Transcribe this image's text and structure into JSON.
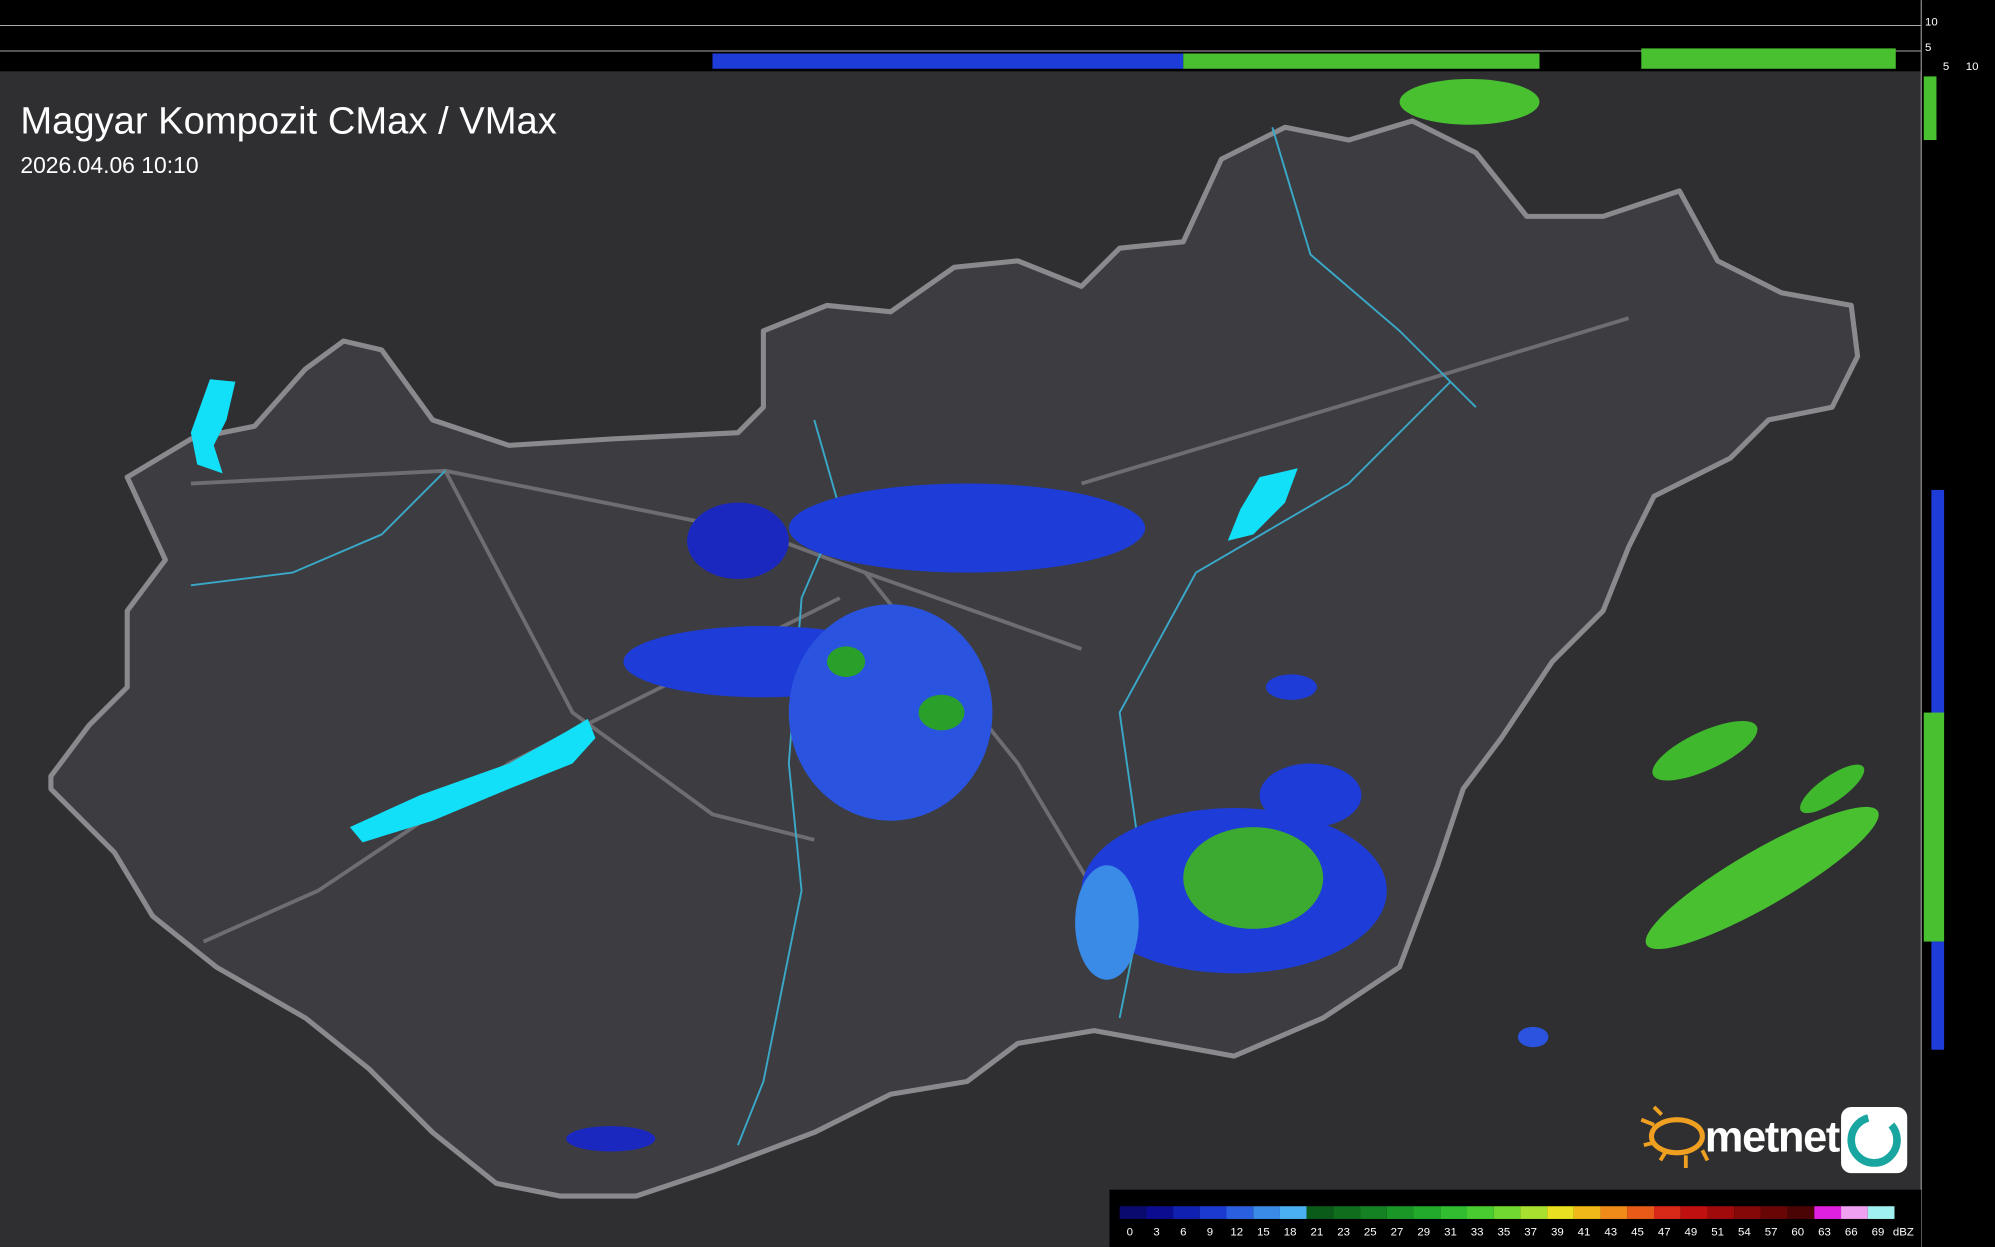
{
  "header": {
    "title": "Magyar Kompozit CMax / VMax",
    "timestamp": "2026.04.06 10:10"
  },
  "side_scale": {
    "top_labels": [
      "10",
      "5"
    ],
    "bottom_labels": [
      "5",
      "10"
    ]
  },
  "logo": {
    "text": "metnet"
  },
  "legend": {
    "unit": "dBZ",
    "items": [
      {
        "label": "0",
        "color": "#0a0a6e"
      },
      {
        "label": "3",
        "color": "#0c0c90"
      },
      {
        "label": "6",
        "color": "#1020b0"
      },
      {
        "label": "9",
        "color": "#1a3ad0"
      },
      {
        "label": "12",
        "color": "#2a60e0"
      },
      {
        "label": "15",
        "color": "#3a8ae8"
      },
      {
        "label": "18",
        "color": "#4ab0f0"
      },
      {
        "label": "21",
        "color": "#0a5a1a"
      },
      {
        "label": "23",
        "color": "#0f6e1e"
      },
      {
        "label": "25",
        "color": "#148222"
      },
      {
        "label": "27",
        "color": "#1a9626"
      },
      {
        "label": "29",
        "color": "#22aa2a"
      },
      {
        "label": "31",
        "color": "#30be30"
      },
      {
        "label": "33",
        "color": "#48cc30"
      },
      {
        "label": "35",
        "color": "#70d830"
      },
      {
        "label": "37",
        "color": "#a8e030"
      },
      {
        "label": "39",
        "color": "#e8e020"
      },
      {
        "label": "41",
        "color": "#f0b818"
      },
      {
        "label": "43",
        "color": "#f08a18"
      },
      {
        "label": "45",
        "color": "#e85a18"
      },
      {
        "label": "47",
        "color": "#d82818"
      },
      {
        "label": "49",
        "color": "#c01010"
      },
      {
        "label": "51",
        "color": "#a00a0a"
      },
      {
        "label": "54",
        "color": "#840808"
      },
      {
        "label": "57",
        "color": "#680606"
      },
      {
        "label": "60",
        "color": "#4a0404"
      },
      {
        "label": "63",
        "color": "#e020e0"
      },
      {
        "label": "66",
        "color": "#f0a0f0"
      },
      {
        "label": "69",
        "color": "#a0f0f0"
      }
    ]
  }
}
